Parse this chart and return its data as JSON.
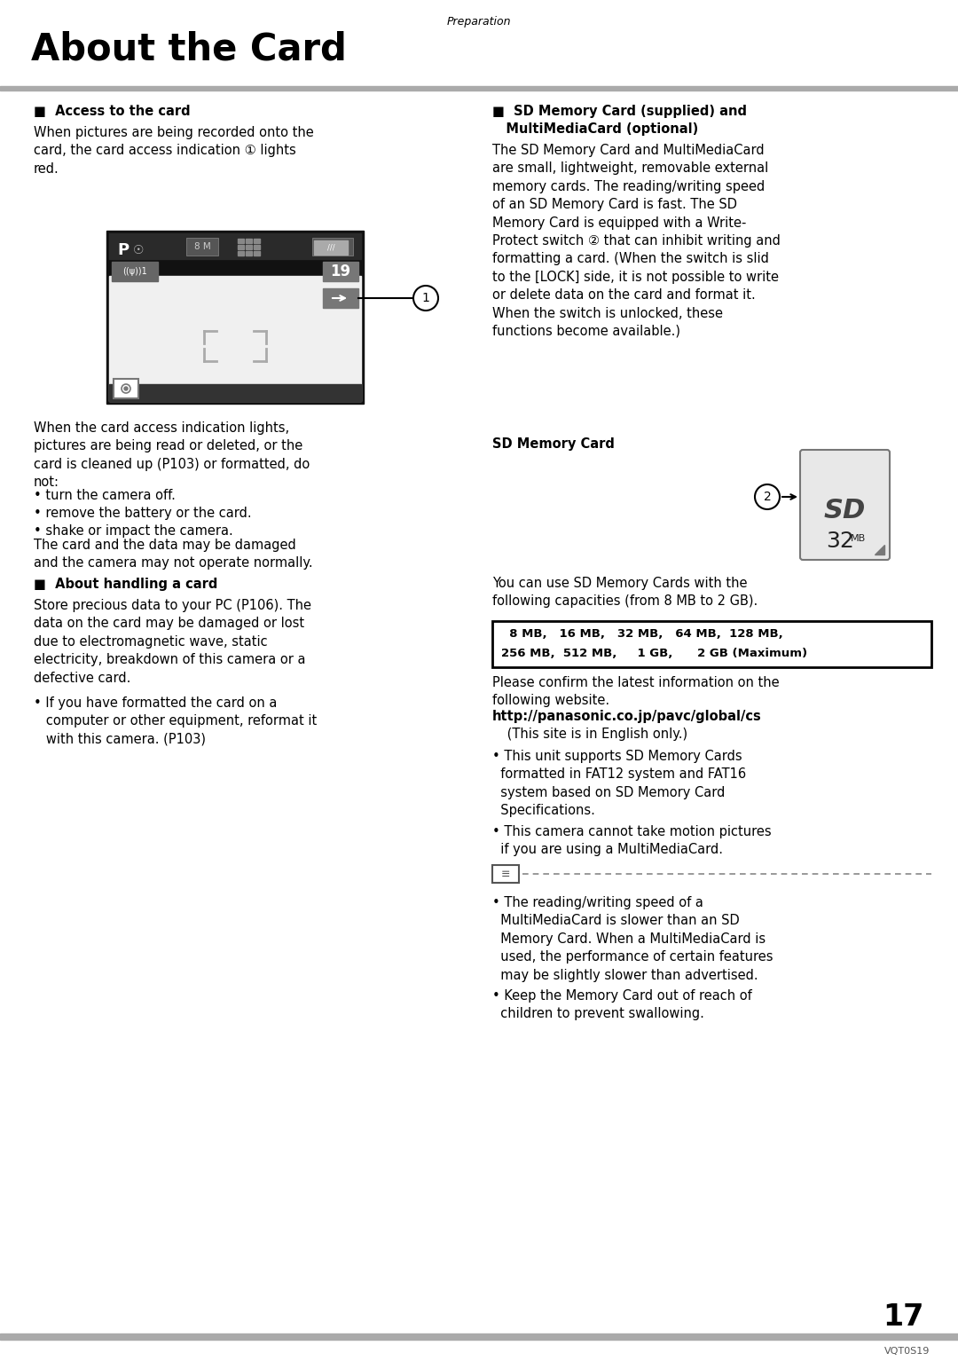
{
  "page_title": "About the Card",
  "header_text": "Preparation",
  "page_number": "17",
  "footer_code": "VQT0S19",
  "bg_color": "#ffffff",
  "left_col": {
    "section1_title": "■  Access to the card",
    "section1_para1": "When pictures are being recorded onto the\ncard, the card access indication ① lights\nred.",
    "section1_para2": "When the card access indication lights,\npictures are being read or deleted, or the\ncard is cleaned up (P103) or formatted, do\nnot:",
    "section1_bullets": [
      "• turn the camera off.",
      "• remove the battery or the card.",
      "• shake or impact the camera."
    ],
    "section1_para3": "The card and the data may be damaged\nand the camera may not operate normally.",
    "section2_title": "■  About handling a card",
    "section2_para1": "Store precious data to your PC (P106). The\ndata on the card may be damaged or lost\ndue to electromagnetic wave, static\nelectricity, breakdown of this camera or a\ndefective card.",
    "section2_bullet1": "• If you have formatted the card on a\n   computer or other equipment, reformat it\n   with this camera. (P103)"
  },
  "right_col": {
    "section3_title_line1": "■  SD Memory Card (supplied) and",
    "section3_title_line2": "   MultiMediaCard (optional)",
    "section3_para1": "The SD Memory Card and MultiMediaCard\nare small, lightweight, removable external\nmemory cards. The reading/writing speed\nof an SD Memory Card is fast. The SD\nMemory Card is equipped with a Write-\nProtect switch ② that can inhibit writing and\nformatting a card. (When the switch is slid\nto the [LOCK] side, it is not possible to write\nor delete data on the card and format it.\nWhen the switch is unlocked, these\nfunctions become available.)",
    "sd_label": "SD Memory Card",
    "section3_para2": "You can use SD Memory Cards with the\nfollowing capacities (from 8 MB to 2 GB).",
    "capacity_line1": "  8 MB,   16 MB,   32 MB,   64 MB,  128 MB,",
    "capacity_line2": "256 MB,  512 MB,     1 GB,      2 GB (Maximum)",
    "section3_para3": "Please confirm the latest information on the\nfollowing website.",
    "website": "http://panasonic.co.jp/pavc/global/cs",
    "website_note": " (This site is in English only.)",
    "bullet2a": "• This unit supports SD Memory Cards\n  formatted in FAT12 system and FAT16\n  system based on SD Memory Card\n  Specifications.",
    "bullet2b": "• This camera cannot take motion pictures\n  if you are using a MultiMediaCard.",
    "note_bullet1": "• The reading/writing speed of a\n  MultiMediaCard is slower than an SD\n  Memory Card. When a MultiMediaCard is\n  used, the performance of certain features\n  may be slightly slower than advertised.",
    "note_bullet2": "• Keep the Memory Card out of reach of\n  children to prevent swallowing."
  }
}
